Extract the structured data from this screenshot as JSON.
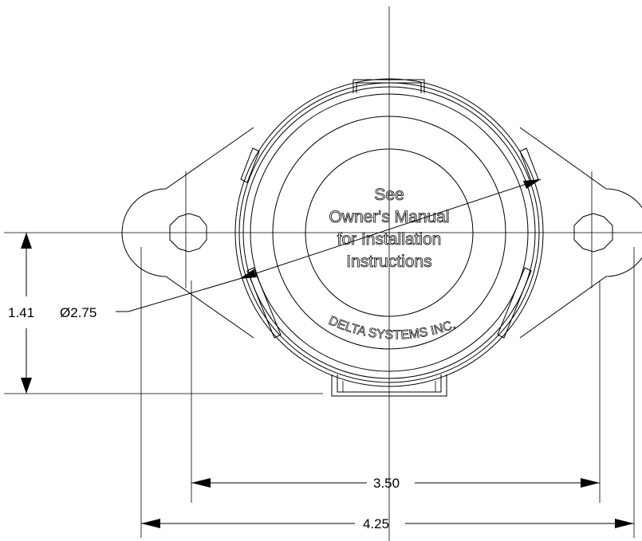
{
  "label": {
    "line1": "See",
    "line2": "Owner's Manual",
    "line3": "for Installation",
    "line4": "Instructions"
  },
  "brand": "DELTA SYSTEMS INC.",
  "dimensions": {
    "height": "1.41",
    "diameter": "Ø2.75",
    "hole_spacing": "3.50",
    "overall_width": "4.25"
  }
}
